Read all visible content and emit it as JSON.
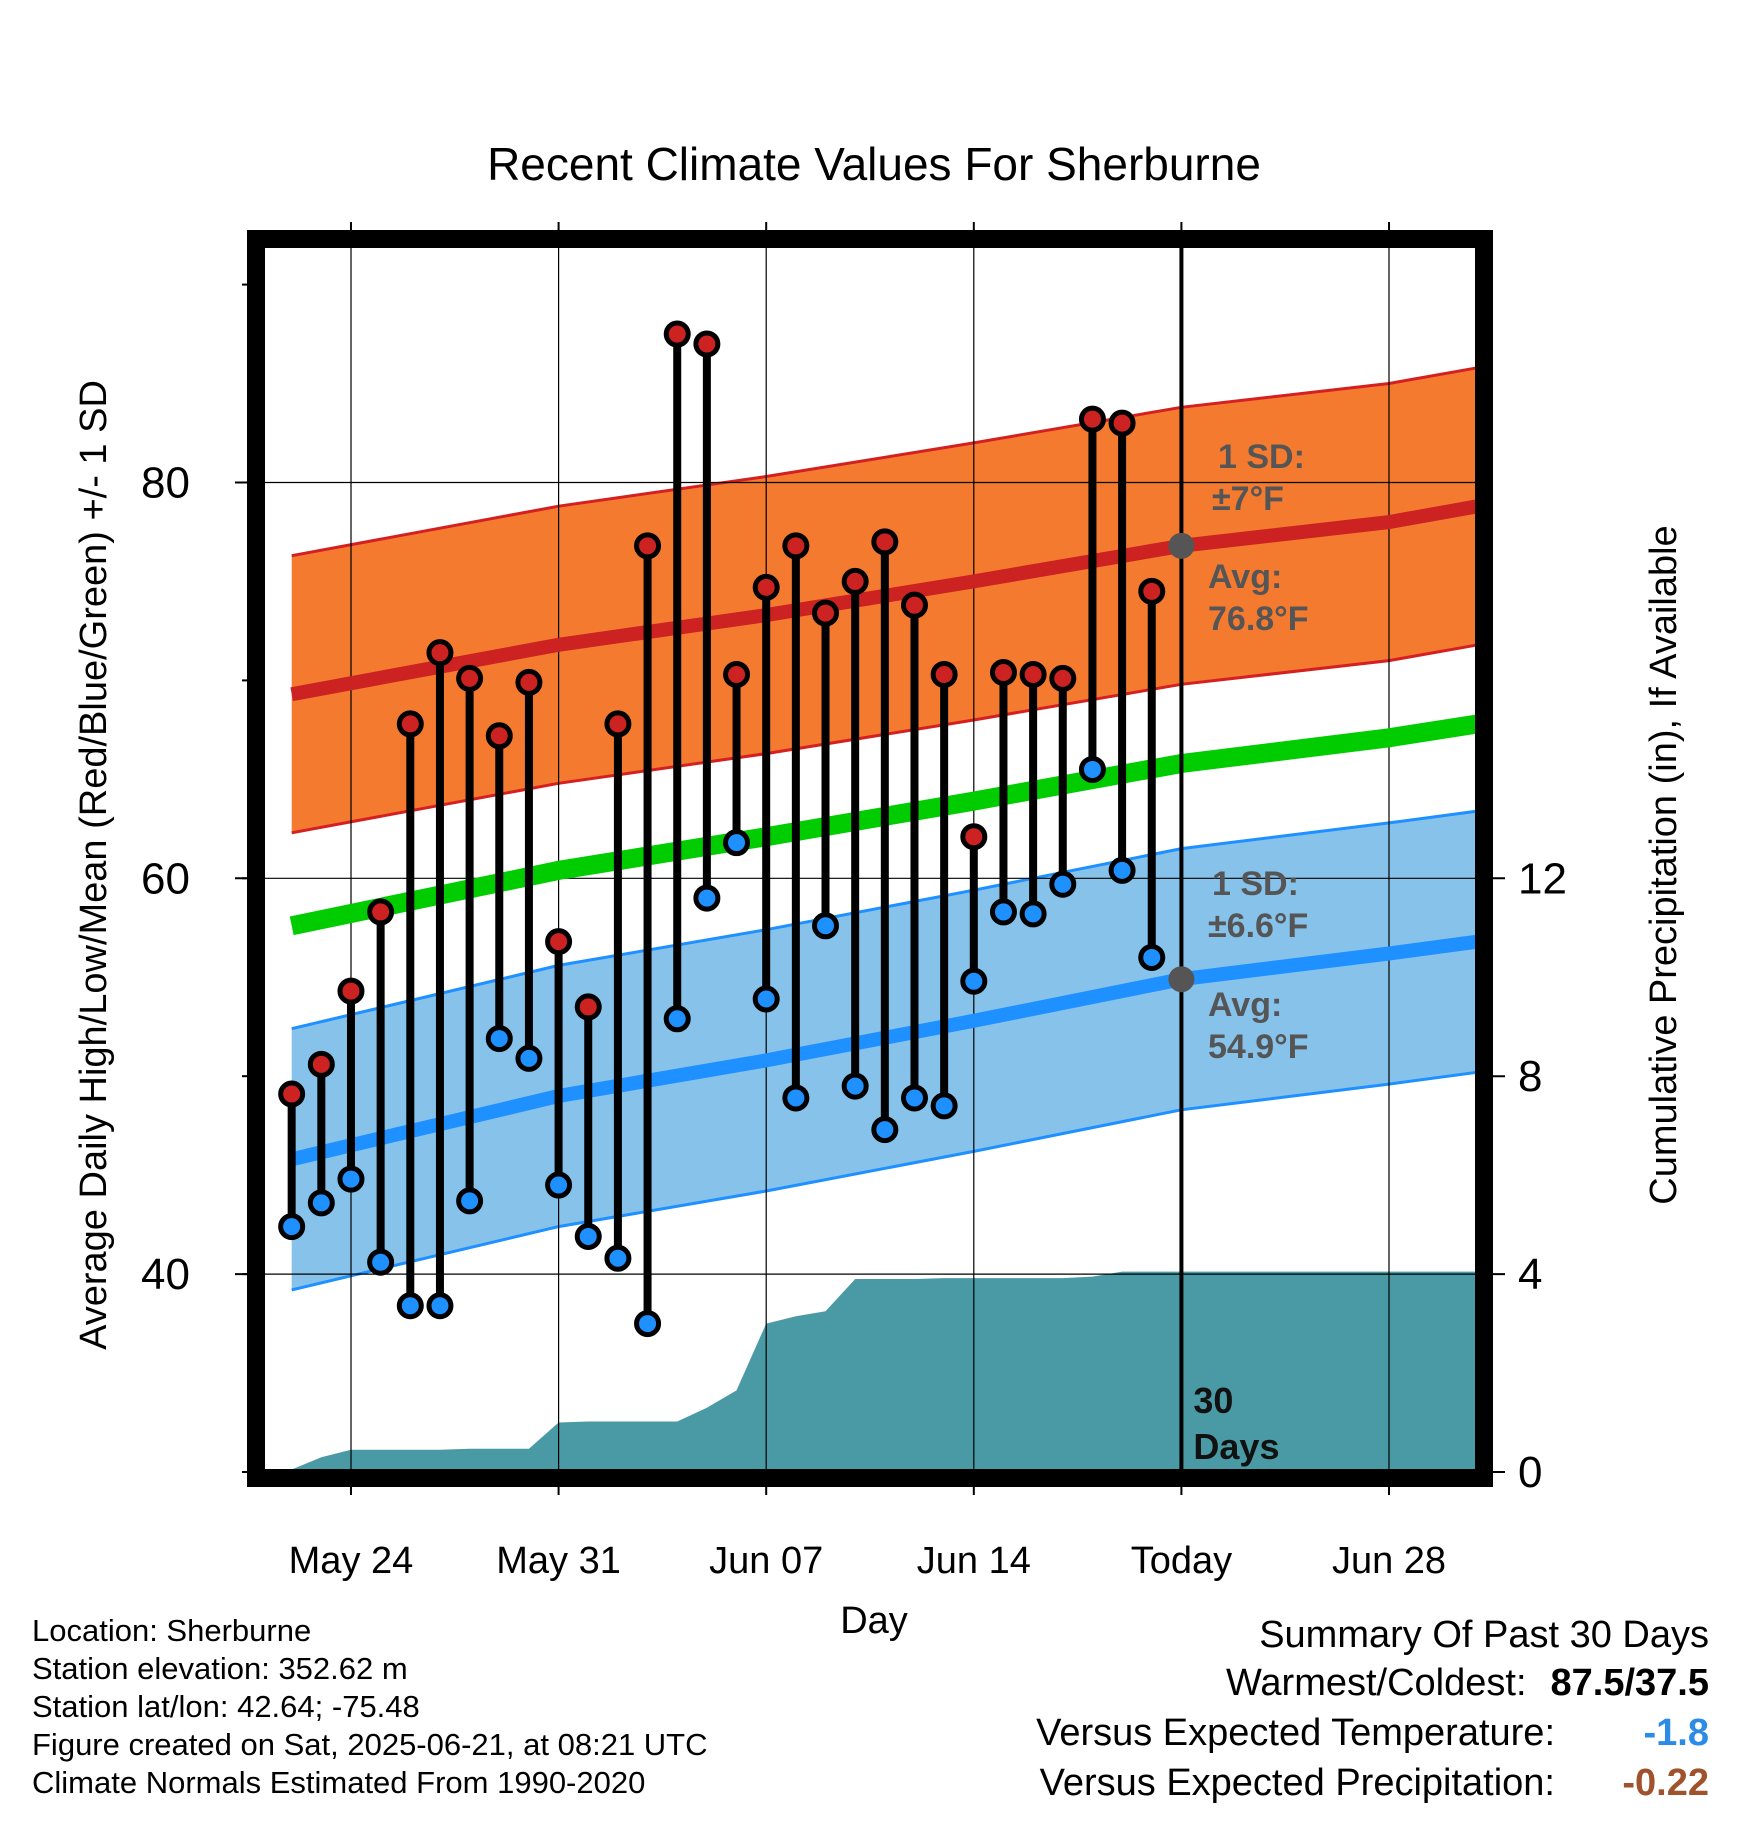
{
  "chart_data": {
    "type": "line",
    "title": "Recent Climate Values For Sherburne",
    "xlabel": "Day",
    "ylabel": "Average Daily High/Low/Mean (Red/Blue/Green) +/- 1 SD",
    "y2label": "Cumulative Precipitation (in), If Available",
    "x_tick_labels": [
      "May 24",
      "May 31",
      "Jun 07",
      "Jun 14",
      "Today",
      "Jun 28"
    ],
    "x_tick_dates": [
      "2025-05-24",
      "2025-05-31",
      "2025-06-07",
      "2025-06-14",
      "2025-06-21",
      "2025-06-28"
    ],
    "y_ticks": [
      40,
      60,
      80
    ],
    "ylim": [
      30,
      92
    ],
    "y2_ticks": [
      0,
      4,
      8,
      12
    ],
    "y2lim": [
      0,
      24.8
    ],
    "xlim": [
      "2025-05-21",
      "2025-07-01"
    ],
    "grid": true,
    "today": "2025-06-21",
    "today_label": "30 Days",
    "annotations": {
      "high_sd_line1": "1 SD:",
      "high_sd_line2": "±7°F",
      "high_avg_line1": "Avg:",
      "high_avg_line2": "76.8°F",
      "low_sd_line1": "1 SD:",
      "low_sd_line2": "±6.6°F",
      "low_avg_line1": "Avg:",
      "low_avg_line2": "54.9°F"
    },
    "normals": {
      "dates": [
        "2025-05-22",
        "2025-05-31",
        "2025-06-07",
        "2025-06-14",
        "2025-06-21",
        "2025-06-28",
        "2025-07-01"
      ],
      "avg_high": [
        69.3,
        71.8,
        73.3,
        75.0,
        76.8,
        78.0,
        78.8
      ],
      "high_sd": 7,
      "avg_low": [
        45.8,
        49.0,
        50.8,
        52.8,
        54.9,
        56.2,
        56.8
      ],
      "low_sd": 6.6,
      "avg_mean": [
        57.6,
        60.4,
        62.1,
        63.9,
        65.8,
        67.1,
        67.8
      ]
    },
    "series": [
      {
        "name": "High",
        "color": "#cc2222",
        "x": [
          "2025-05-22",
          "2025-05-23",
          "2025-05-24",
          "2025-05-25",
          "2025-05-26",
          "2025-05-27",
          "2025-05-28",
          "2025-05-29",
          "2025-05-30",
          "2025-05-31",
          "2025-06-01",
          "2025-06-02",
          "2025-06-03",
          "2025-06-04",
          "2025-06-05",
          "2025-06-06",
          "2025-06-07",
          "2025-06-08",
          "2025-06-09",
          "2025-06-10",
          "2025-06-11",
          "2025-06-12",
          "2025-06-13",
          "2025-06-14",
          "2025-06-15",
          "2025-06-16",
          "2025-06-17",
          "2025-06-18",
          "2025-06-19",
          "2025-06-20"
        ],
        "values": [
          49.1,
          50.6,
          54.3,
          58.3,
          67.8,
          71.4,
          70.1,
          67.2,
          69.9,
          56.8,
          53.5,
          67.8,
          76.8,
          87.5,
          87.0,
          70.3,
          74.7,
          76.8,
          73.4,
          75.0,
          77.0,
          73.8,
          70.3,
          62.1,
          70.4,
          70.3,
          70.1,
          83.2,
          83.0,
          74.5
        ]
      },
      {
        "name": "Low",
        "color": "#1e90ff",
        "x": [
          "2025-05-22",
          "2025-05-23",
          "2025-05-24",
          "2025-05-25",
          "2025-05-26",
          "2025-05-27",
          "2025-05-28",
          "2025-05-29",
          "2025-05-30",
          "2025-05-31",
          "2025-06-01",
          "2025-06-02",
          "2025-06-03",
          "2025-06-04",
          "2025-06-05",
          "2025-06-06",
          "2025-06-07",
          "2025-06-08",
          "2025-06-09",
          "2025-06-10",
          "2025-06-11",
          "2025-06-12",
          "2025-06-13",
          "2025-06-14",
          "2025-06-15",
          "2025-06-16",
          "2025-06-17",
          "2025-06-18",
          "2025-06-19",
          "2025-06-20"
        ],
        "values": [
          42.4,
          43.6,
          44.8,
          40.6,
          38.4,
          38.4,
          43.7,
          51.9,
          50.9,
          44.5,
          41.9,
          40.8,
          37.5,
          52.9,
          59.0,
          61.8,
          53.9,
          48.9,
          57.6,
          49.5,
          47.3,
          48.9,
          48.5,
          54.8,
          58.3,
          58.2,
          59.7,
          65.5,
          60.4,
          56.0
        ]
      },
      {
        "name": "Cumulative Precipitation",
        "color": "#4a9aa5",
        "x": [
          "2025-05-21",
          "2025-05-22",
          "2025-05-23",
          "2025-05-24",
          "2025-05-25",
          "2025-05-26",
          "2025-05-27",
          "2025-05-28",
          "2025-05-29",
          "2025-05-30",
          "2025-05-31",
          "2025-06-01",
          "2025-06-02",
          "2025-06-03",
          "2025-06-04",
          "2025-06-05",
          "2025-06-06",
          "2025-06-07",
          "2025-06-08",
          "2025-06-09",
          "2025-06-10",
          "2025-06-11",
          "2025-06-12",
          "2025-06-13",
          "2025-06-14",
          "2025-06-15",
          "2025-06-16",
          "2025-06-17",
          "2025-06-18",
          "2025-06-19",
          "2025-06-20",
          "2025-06-21",
          "2025-07-01"
        ],
        "values": [
          0,
          0.05,
          0.3,
          0.45,
          0.45,
          0.45,
          0.45,
          0.47,
          0.47,
          0.47,
          1.0,
          1.02,
          1.02,
          1.02,
          1.02,
          1.3,
          1.65,
          3.0,
          3.15,
          3.25,
          3.9,
          3.9,
          3.9,
          3.92,
          3.92,
          3.92,
          3.92,
          3.92,
          3.95,
          4.05,
          4.05,
          4.05,
          4.05
        ]
      }
    ]
  },
  "footer": {
    "location": "Location: Sherburne",
    "elevation": "Station elevation: 352.62 m",
    "latlon": "Station lat/lon: 42.64; -75.48",
    "created": "Figure created on Sat, 2025-06-21, at 08:21 UTC",
    "normals": "Climate Normals Estimated From 1990-2020"
  },
  "summary": {
    "title": "Summary Of Past 30 Days",
    "warmest_label": "Warmest/Coldest:",
    "warmest_value": "87.5/37.5",
    "temp_label": "Versus Expected Temperature:",
    "temp_value": "-1.8",
    "temp_color": "#2b8be6",
    "precip_label": "Versus Expected Precipitation:",
    "precip_value": "-0.22",
    "precip_color": "#a0522d"
  }
}
